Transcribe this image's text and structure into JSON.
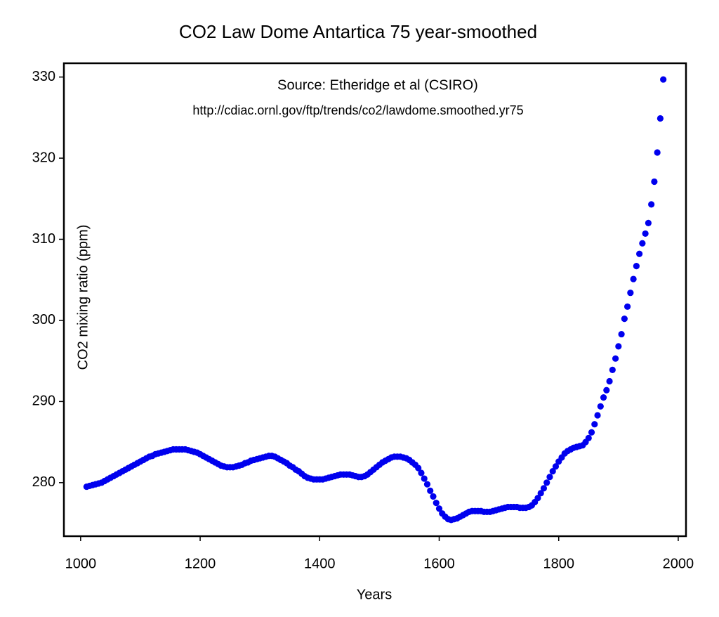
{
  "chart_data": {
    "type": "scatter",
    "title": "CO2 Law Dome Antartica 75 year-smoothed",
    "annotations": [
      "Source: Etheridge et al (CSIRO)",
      "http://cdiac.ornl.gov/ftp/trends/co2/lawdome.smoothed.yr75"
    ],
    "xlabel": "Years",
    "ylabel": "CO2 mixing ratio (ppm)",
    "color": "#0000ee",
    "xlim": [
      972,
      2013
    ],
    "ylim": [
      273.4,
      331.7
    ],
    "xticks": [
      1000,
      1200,
      1400,
      1600,
      1800,
      2000
    ],
    "yticks": [
      280,
      290,
      300,
      310,
      320,
      330
    ],
    "x": [
      1010,
      1015,
      1020,
      1025,
      1030,
      1035,
      1040,
      1045,
      1050,
      1055,
      1060,
      1065,
      1070,
      1075,
      1080,
      1085,
      1090,
      1095,
      1100,
      1105,
      1110,
      1115,
      1120,
      1125,
      1130,
      1135,
      1140,
      1145,
      1150,
      1155,
      1160,
      1165,
      1170,
      1175,
      1180,
      1185,
      1190,
      1195,
      1200,
      1205,
      1210,
      1215,
      1220,
      1225,
      1230,
      1235,
      1240,
      1245,
      1250,
      1255,
      1260,
      1265,
      1270,
      1275,
      1280,
      1285,
      1290,
      1295,
      1300,
      1305,
      1310,
      1315,
      1320,
      1325,
      1330,
      1335,
      1340,
      1345,
      1350,
      1355,
      1360,
      1365,
      1370,
      1375,
      1380,
      1385,
      1390,
      1395,
      1400,
      1405,
      1410,
      1415,
      1420,
      1425,
      1430,
      1435,
      1440,
      1445,
      1450,
      1455,
      1460,
      1465,
      1470,
      1475,
      1480,
      1485,
      1490,
      1495,
      1500,
      1505,
      1510,
      1515,
      1520,
      1525,
      1530,
      1535,
      1540,
      1545,
      1550,
      1555,
      1560,
      1565,
      1570,
      1575,
      1580,
      1585,
      1590,
      1595,
      1600,
      1605,
      1610,
      1615,
      1620,
      1625,
      1630,
      1635,
      1640,
      1645,
      1650,
      1655,
      1660,
      1665,
      1670,
      1675,
      1680,
      1685,
      1690,
      1695,
      1700,
      1705,
      1710,
      1715,
      1720,
      1725,
      1730,
      1735,
      1740,
      1745,
      1750,
      1755,
      1760,
      1765,
      1770,
      1775,
      1780,
      1785,
      1790,
      1795,
      1800,
      1805,
      1810,
      1815,
      1820,
      1825,
      1830,
      1835,
      1840,
      1845,
      1850,
      1855,
      1860,
      1865,
      1870,
      1875,
      1880,
      1885,
      1890,
      1895,
      1900,
      1905,
      1910,
      1915,
      1920,
      1925,
      1930,
      1935,
      1940,
      1945,
      1950,
      1955,
      1960,
      1965,
      1970,
      1975
    ],
    "values": [
      279.5,
      279.6,
      279.7,
      279.8,
      279.9,
      280.0,
      280.2,
      280.4,
      280.6,
      280.8,
      281.0,
      281.2,
      281.4,
      281.6,
      281.8,
      282.0,
      282.2,
      282.4,
      282.6,
      282.8,
      283.0,
      283.2,
      283.3,
      283.5,
      283.6,
      283.7,
      283.8,
      283.9,
      284.0,
      284.1,
      284.1,
      284.1,
      284.1,
      284.1,
      284.0,
      283.9,
      283.8,
      283.7,
      283.5,
      283.3,
      283.1,
      282.9,
      282.7,
      282.5,
      282.3,
      282.1,
      282.0,
      281.9,
      281.9,
      281.9,
      282.0,
      282.1,
      282.2,
      282.4,
      282.5,
      282.7,
      282.8,
      282.9,
      283.0,
      283.1,
      283.2,
      283.3,
      283.3,
      283.2,
      283.0,
      282.8,
      282.6,
      282.4,
      282.1,
      281.9,
      281.6,
      281.4,
      281.1,
      280.8,
      280.6,
      280.5,
      280.4,
      280.4,
      280.4,
      280.4,
      280.5,
      280.6,
      280.7,
      280.8,
      280.9,
      281.0,
      281.0,
      281.0,
      281.0,
      280.9,
      280.8,
      280.7,
      280.7,
      280.8,
      281.0,
      281.3,
      281.6,
      281.9,
      282.2,
      282.5,
      282.7,
      282.9,
      283.1,
      283.2,
      283.2,
      283.2,
      283.1,
      283.0,
      282.8,
      282.5,
      282.2,
      281.8,
      281.2,
      280.5,
      279.8,
      279.0,
      278.3,
      277.5,
      276.8,
      276.2,
      275.8,
      275.5,
      275.4,
      275.5,
      275.6,
      275.8,
      276.0,
      276.2,
      276.4,
      276.5,
      276.5,
      276.5,
      276.5,
      276.4,
      276.4,
      276.4,
      276.5,
      276.6,
      276.7,
      276.8,
      276.9,
      277.0,
      277.0,
      277.0,
      277.0,
      276.9,
      276.9,
      276.9,
      277.0,
      277.2,
      277.6,
      278.1,
      278.7,
      279.3,
      280.0,
      280.7,
      281.4,
      282.0,
      282.6,
      283.1,
      283.6,
      283.9,
      284.1,
      284.3,
      284.4,
      284.5,
      284.6,
      285.0,
      285.5,
      286.2,
      287.2,
      288.3,
      289.4,
      290.5,
      291.4,
      292.5,
      293.9,
      295.3,
      296.8,
      298.3,
      300.2,
      301.7,
      303.4,
      305.1,
      306.7,
      308.2,
      309.5,
      310.7,
      312.0,
      314.3,
      317.1,
      320.7,
      324.9,
      329.7
    ]
  }
}
